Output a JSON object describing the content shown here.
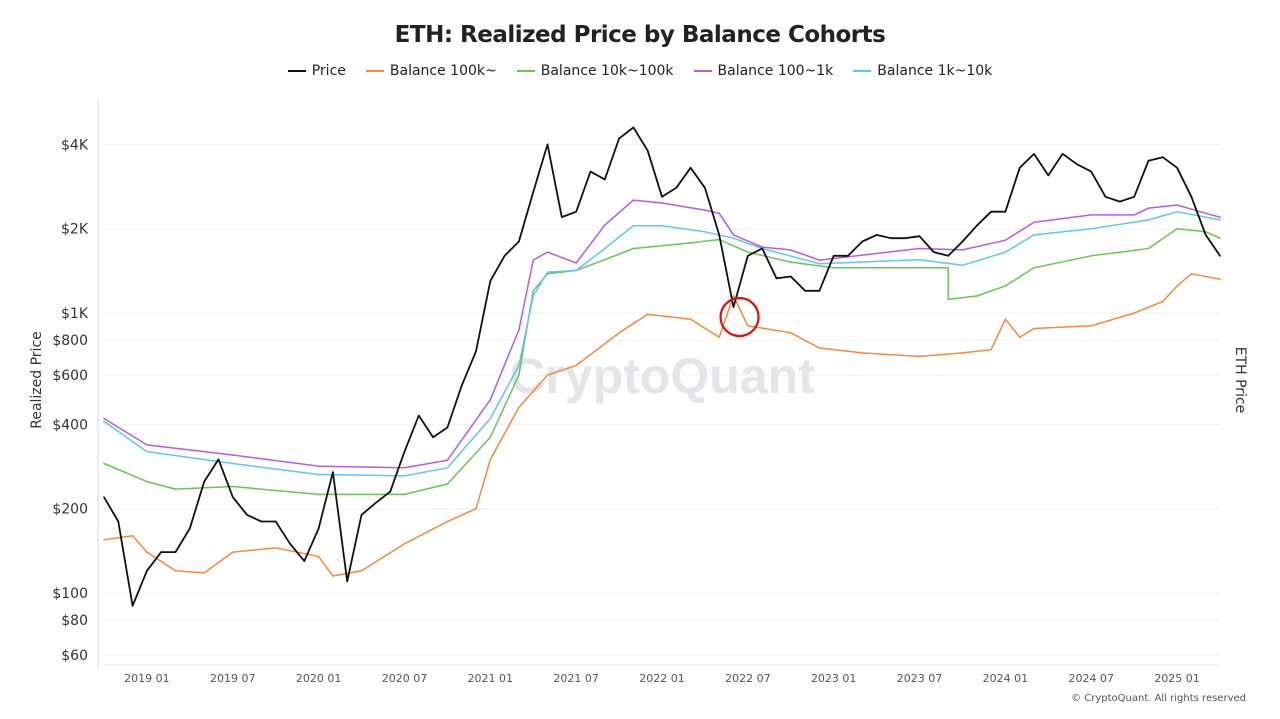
{
  "chart_data": {
    "type": "line",
    "title": "ETH: Realized Price by Balance Cohorts",
    "ylabel": "Realized Price",
    "ylabel_right": "ETH Price",
    "yscale": "log",
    "ylim": [
      60,
      5000
    ],
    "xlim": [
      "2018-10",
      "2025-04"
    ],
    "grid": true,
    "legend_placement": "top-center",
    "y_ticks": [
      {
        "value": 60,
        "label": "$60"
      },
      {
        "value": 80,
        "label": "$80"
      },
      {
        "value": 100,
        "label": "$100"
      },
      {
        "value": 200,
        "label": "$200"
      },
      {
        "value": 400,
        "label": "$400"
      },
      {
        "value": 600,
        "label": "$600"
      },
      {
        "value": 800,
        "label": "$800"
      },
      {
        "value": 1000,
        "label": "$1K"
      },
      {
        "value": 2000,
        "label": "$2K"
      },
      {
        "value": 4000,
        "label": "$4K"
      }
    ],
    "x_ticks": [
      {
        "date": "2019-01",
        "label": "2019 01"
      },
      {
        "date": "2019-07",
        "label": "2019 07"
      },
      {
        "date": "2020-01",
        "label": "2020 01"
      },
      {
        "date": "2020-07",
        "label": "2020 07"
      },
      {
        "date": "2021-01",
        "label": "2021 01"
      },
      {
        "date": "2021-07",
        "label": "2021 07"
      },
      {
        "date": "2022-01",
        "label": "2022 01"
      },
      {
        "date": "2022-07",
        "label": "2022 07"
      },
      {
        "date": "2023-01",
        "label": "2023 01"
      },
      {
        "date": "2023-07",
        "label": "2023 07"
      },
      {
        "date": "2024-01",
        "label": "2024 01"
      },
      {
        "date": "2024-07",
        "label": "2024 07"
      },
      {
        "date": "2025-01",
        "label": "2025 01"
      }
    ],
    "series": [
      {
        "name": "Price",
        "color": "#111111",
        "x": [
          "2018-10",
          "2018-11",
          "2018-12",
          "2019-01",
          "2019-02",
          "2019-03",
          "2019-04",
          "2019-05",
          "2019-06",
          "2019-07",
          "2019-08",
          "2019-09",
          "2019-10",
          "2019-11",
          "2019-12",
          "2020-01",
          "2020-02",
          "2020-03",
          "2020-04",
          "2020-05",
          "2020-06",
          "2020-07",
          "2020-08",
          "2020-09",
          "2020-10",
          "2020-11",
          "2020-12",
          "2021-01",
          "2021-02",
          "2021-03",
          "2021-04",
          "2021-05",
          "2021-06",
          "2021-07",
          "2021-08",
          "2021-09",
          "2021-10",
          "2021-11",
          "2021-12",
          "2022-01",
          "2022-02",
          "2022-03",
          "2022-04",
          "2022-05",
          "2022-06",
          "2022-07",
          "2022-08",
          "2022-09",
          "2022-10",
          "2022-11",
          "2022-12",
          "2023-01",
          "2023-02",
          "2023-03",
          "2023-04",
          "2023-05",
          "2023-06",
          "2023-07",
          "2023-08",
          "2023-09",
          "2023-10",
          "2023-11",
          "2023-12",
          "2024-01",
          "2024-02",
          "2024-03",
          "2024-04",
          "2024-05",
          "2024-06",
          "2024-07",
          "2024-08",
          "2024-09",
          "2024-10",
          "2024-11",
          "2024-12",
          "2025-01",
          "2025-02",
          "2025-03",
          "2025-04"
        ],
        "y": [
          220,
          180,
          90,
          120,
          140,
          140,
          170,
          250,
          300,
          220,
          190,
          180,
          180,
          150,
          130,
          170,
          270,
          110,
          190,
          210,
          230,
          320,
          430,
          360,
          390,
          550,
          730,
          1300,
          1600,
          1800,
          2700,
          4000,
          2200,
          2300,
          3200,
          3000,
          4200,
          4600,
          3800,
          2600,
          2800,
          3300,
          2800,
          1900,
          1050,
          1600,
          1700,
          1330,
          1350,
          1200,
          1200,
          1600,
          1600,
          1800,
          1900,
          1850,
          1850,
          1880,
          1650,
          1600,
          1800,
          2050,
          2300,
          2300,
          3300,
          3700,
          3100,
          3700,
          3400,
          3200,
          2600,
          2500,
          2600,
          3500,
          3600,
          3300,
          2600,
          1900,
          1600
        ]
      },
      {
        "name": "Balance 100k~",
        "color": "#f5893f",
        "x": [
          "2018-10",
          "2018-12",
          "2019-01",
          "2019-03",
          "2019-05",
          "2019-07",
          "2019-10",
          "2020-01",
          "2020-02",
          "2020-04",
          "2020-07",
          "2020-10",
          "2020-12",
          "2021-01",
          "2021-03",
          "2021-05",
          "2021-07",
          "2021-10",
          "2021-12",
          "2022-03",
          "2022-05",
          "2022-06",
          "2022-07",
          "2022-10",
          "2022-12",
          "2023-03",
          "2023-07",
          "2023-10",
          "2023-12",
          "2024-01",
          "2024-02",
          "2024-03",
          "2024-07",
          "2024-10",
          "2024-12",
          "2025-01",
          "2025-02",
          "2025-04"
        ],
        "y": [
          155,
          160,
          140,
          120,
          118,
          140,
          145,
          135,
          115,
          120,
          150,
          180,
          200,
          300,
          460,
          600,
          650,
          850,
          990,
          950,
          820,
          1150,
          900,
          850,
          750,
          720,
          700,
          720,
          740,
          950,
          820,
          880,
          900,
          1000,
          1100,
          1250,
          1380,
          1320
        ]
      },
      {
        "name": "Balance 10k~100k",
        "color": "#6cc458",
        "x": [
          "2018-10",
          "2019-01",
          "2019-03",
          "2019-07",
          "2020-01",
          "2020-07",
          "2020-10",
          "2021-01",
          "2021-03",
          "2021-04",
          "2021-05",
          "2021-07",
          "2021-09",
          "2021-11",
          "2022-03",
          "2022-05",
          "2022-07",
          "2022-10",
          "2023-01",
          "2023-07",
          "2023-09",
          "2023-09",
          "2023-11",
          "2024-01",
          "2024-03",
          "2024-07",
          "2024-11",
          "2025-01",
          "2025-03",
          "2025-04"
        ],
        "y": [
          290,
          250,
          235,
          240,
          225,
          225,
          245,
          360,
          600,
          1200,
          1380,
          1420,
          1550,
          1700,
          1780,
          1830,
          1650,
          1520,
          1450,
          1450,
          1450,
          1120,
          1150,
          1250,
          1450,
          1600,
          1700,
          2000,
          1950,
          1850
        ]
      },
      {
        "name": "Balance 100~1k",
        "color": "#b65de6",
        "x": [
          "2018-10",
          "2019-01",
          "2019-07",
          "2020-01",
          "2020-07",
          "2020-10",
          "2021-01",
          "2021-03",
          "2021-04",
          "2021-05",
          "2021-07",
          "2021-09",
          "2021-11",
          "2022-01",
          "2022-04",
          "2022-05",
          "2022-06",
          "2022-08",
          "2022-10",
          "2022-12",
          "2023-07",
          "2023-10",
          "2024-01",
          "2024-03",
          "2024-07",
          "2024-10",
          "2024-11",
          "2025-01",
          "2025-03",
          "2025-04"
        ],
        "y": [
          420,
          338,
          311,
          284,
          280,
          298,
          490,
          870,
          1545,
          1650,
          1510,
          2060,
          2530,
          2470,
          2330,
          2270,
          1900,
          1720,
          1680,
          1545,
          1700,
          1680,
          1820,
          2110,
          2240,
          2240,
          2370,
          2430,
          2270,
          2200
        ]
      },
      {
        "name": "Balance 1k~10k",
        "color": "#5ec8ec",
        "x": [
          "2018-10",
          "2019-01",
          "2019-07",
          "2020-01",
          "2020-07",
          "2020-10",
          "2021-01",
          "2021-03",
          "2021-04",
          "2021-05",
          "2021-07",
          "2021-09",
          "2021-11",
          "2022-01",
          "2022-04",
          "2022-06",
          "2022-08",
          "2022-12",
          "2023-07",
          "2023-10",
          "2024-01",
          "2024-03",
          "2024-07",
          "2024-11",
          "2025-01",
          "2025-04"
        ],
        "y": [
          410,
          320,
          290,
          265,
          262,
          280,
          420,
          650,
          1150,
          1400,
          1420,
          1700,
          2050,
          2050,
          1950,
          1850,
          1700,
          1500,
          1550,
          1480,
          1650,
          1900,
          2000,
          2150,
          2300,
          2150
        ]
      }
    ],
    "annotations": [
      {
        "type": "circle",
        "color": "#e01010",
        "date": "2022-06",
        "value": 1000
      }
    ]
  },
  "watermark": "CryptoQuant",
  "footer": "© CryptoQuant. All rights reserved"
}
